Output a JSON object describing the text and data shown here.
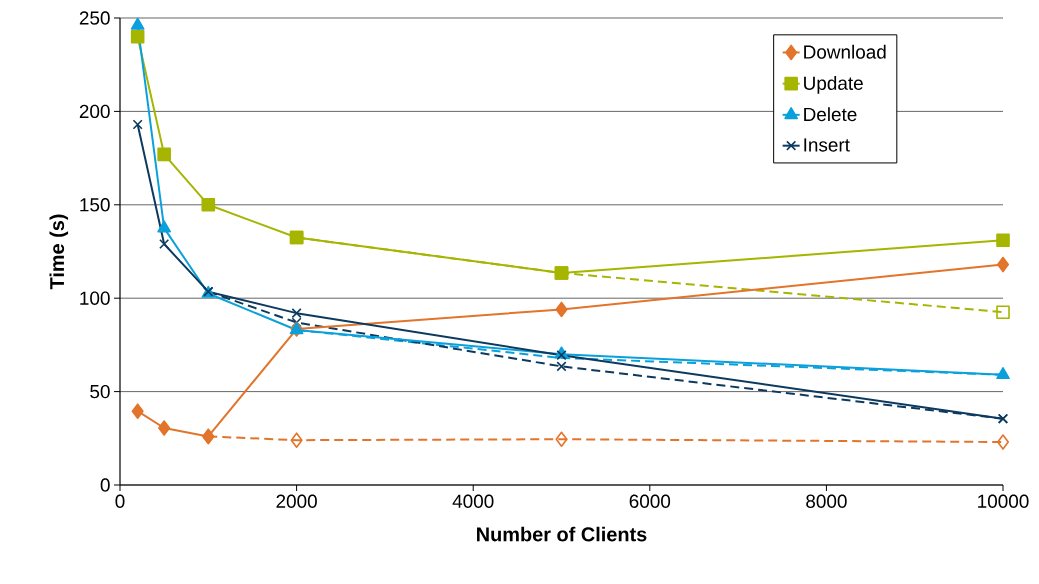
{
  "chart_data": {
    "type": "line",
    "xlabel": "Number of Clients",
    "ylabel": "Time (s)",
    "xlim": [
      0,
      10000
    ],
    "xticks": [
      0,
      2000,
      4000,
      6000,
      8000,
      10000
    ],
    "ylim": [
      0,
      250
    ],
    "yticks": [
      0,
      50,
      100,
      150,
      200,
      250
    ],
    "grid": "y",
    "legend": "top right",
    "series": [
      {
        "name": "Download",
        "color": "#e2742b",
        "marker": "diamond",
        "line_style": "solid",
        "x": [
          200,
          500,
          1000,
          2000,
          5000,
          10000
        ],
        "values": [
          39.5,
          30.5,
          26,
          83.5,
          94,
          118
        ]
      },
      {
        "name": "Update",
        "color": "#a5b500",
        "marker": "square",
        "line_style": "solid",
        "x": [
          200,
          500,
          1000,
          2000,
          5000,
          10000
        ],
        "values": [
          240,
          177,
          150,
          132.5,
          113.5,
          131
        ]
      },
      {
        "name": "Delete",
        "color": "#0aa0dc",
        "marker": "triangle",
        "line_style": "solid",
        "x": [
          200,
          500,
          1000,
          2000,
          5000,
          10000
        ],
        "values": [
          246,
          137.5,
          102.5,
          83,
          70,
          59
        ]
      },
      {
        "name": "Insert",
        "color": "#0c3a5f",
        "marker": "cross",
        "line_style": "solid",
        "x": [
          200,
          500,
          1000,
          2000,
          5000,
          10000
        ],
        "values": [
          193,
          129,
          103.5,
          92,
          69.5,
          35.5
        ]
      },
      {
        "color": "#e2742b",
        "marker": "diamond",
        "line_style": "dashed",
        "x": [
          1000,
          2000,
          5000,
          10000
        ],
        "values": [
          26,
          24,
          24.5,
          23
        ]
      },
      {
        "color": "#a5b500",
        "marker": "square",
        "line_style": "dashed",
        "x": [
          2000,
          5000,
          10000
        ],
        "values": [
          132.5,
          113.5,
          92.5
        ]
      },
      {
        "color": "#0aa0dc",
        "marker": "none",
        "line_style": "dashed",
        "x": [
          2000,
          5000,
          10000
        ],
        "values": [
          83,
          68,
          59
        ]
      },
      {
        "color": "#0c3a5f",
        "marker": "cross",
        "line_style": "dashed",
        "x": [
          1000,
          2000,
          5000,
          10000
        ],
        "values": [
          103.5,
          87,
          63.5,
          35.5
        ]
      }
    ]
  }
}
